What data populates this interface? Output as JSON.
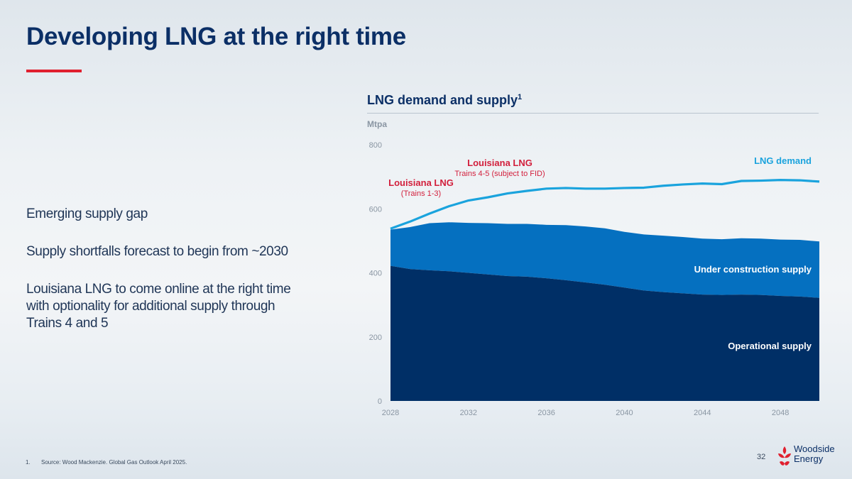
{
  "slide": {
    "title": "Developing LNG at the right time",
    "page_number": "32",
    "brand": {
      "line1": "Woodside",
      "line2": "Energy",
      "color": "#e0202f"
    },
    "accent_color": "#e0202f",
    "bullets": [
      "Emerging supply gap",
      "Supply shortfalls forecast to begin from ~2030",
      "Louisiana LNG to come online at the right time with optionality for additional supply through Trains 4 and 5"
    ],
    "footnote": {
      "number": "1.",
      "text": "Source: Wood Mackenzie. Global Gas Outlook April 2025."
    }
  },
  "chart_data": {
    "type": "area",
    "title": "LNG demand and supply",
    "title_superscript": "1",
    "ylabel": "Mtpa",
    "ylim": [
      0,
      800
    ],
    "yticks": [
      0,
      200,
      400,
      600,
      800
    ],
    "xlim": [
      2028,
      2050
    ],
    "xticks": [
      2028,
      2032,
      2036,
      2040,
      2044,
      2048
    ],
    "x": [
      2028,
      2029,
      2030,
      2031,
      2032,
      2033,
      2034,
      2035,
      2036,
      2037,
      2038,
      2039,
      2040,
      2041,
      2042,
      2043,
      2044,
      2045,
      2046,
      2047,
      2048,
      2049,
      2050
    ],
    "series": [
      {
        "name": "Operational supply",
        "kind": "area",
        "color": "#002f66",
        "values": [
          422,
          412,
          408,
          405,
          400,
          395,
          390,
          388,
          383,
          377,
          370,
          363,
          354,
          345,
          340,
          336,
          332,
          331,
          332,
          331,
          328,
          326,
          322
        ]
      },
      {
        "name": "Under construction supply",
        "kind": "area-stacked-top",
        "color": "#0570c0",
        "values": [
          535,
          543,
          555,
          558,
          556,
          555,
          553,
          553,
          550,
          549,
          545,
          539,
          528,
          520,
          516,
          512,
          507,
          505,
          508,
          507,
          504,
          503,
          498
        ]
      },
      {
        "name": "LNG demand",
        "kind": "line",
        "color": "#1aa3dd",
        "values": [
          538,
          560,
          585,
          608,
          626,
          636,
          648,
          656,
          663,
          665,
          663,
          663,
          665,
          666,
          672,
          676,
          679,
          677,
          687,
          688,
          690,
          689,
          685
        ]
      }
    ],
    "series_labels": [
      {
        "text": "LNG demand",
        "color": "#1aa3dd"
      },
      {
        "text": "Under construction supply",
        "color": "#ffffff"
      },
      {
        "text": "Operational supply",
        "color": "#ffffff"
      }
    ],
    "annotations": [
      {
        "title": "Louisiana LNG",
        "subtitle": "(Trains 1-3)",
        "color": "#d21f3c"
      },
      {
        "title": "Louisiana LNG",
        "subtitle": "Trains 4-5 (subject to FID)",
        "color": "#d21f3c"
      }
    ]
  }
}
